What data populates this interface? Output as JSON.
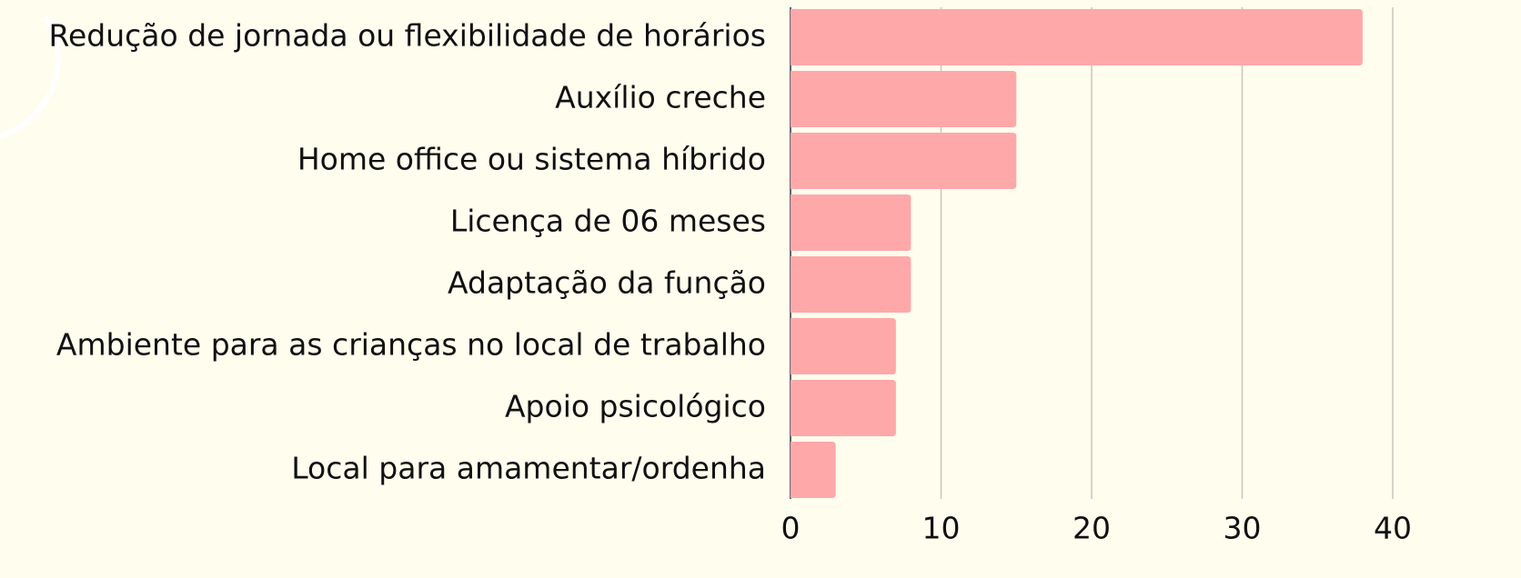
{
  "chart_data": {
    "type": "barh",
    "categories": [
      "Redução de jornada ou flexibilidade de horários",
      "Auxílio creche",
      "Home office ou sistema híbrido",
      "Licença de 06 meses",
      "Adaptação da função",
      "Ambiente para as crianças no local de trabalho",
      "Apoio psicológico",
      "Local para amamentar/ordenha"
    ],
    "values": [
      38,
      15,
      15,
      8,
      8,
      7,
      7,
      3
    ],
    "color": "#ffa8aa",
    "xlim": [
      0,
      40
    ],
    "xticks": [
      0,
      10,
      20,
      30,
      40
    ],
    "grid": true
  }
}
